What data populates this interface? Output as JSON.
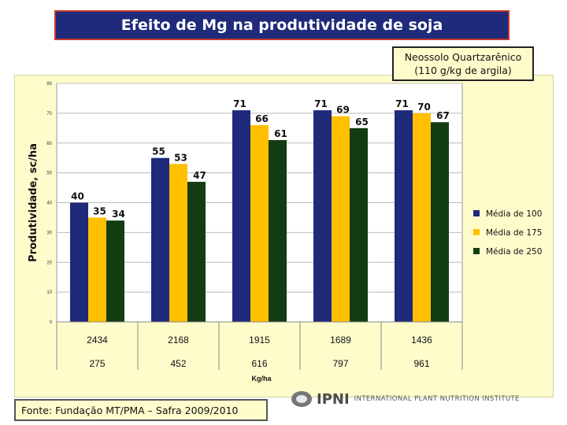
{
  "slide": {
    "title": "Efeito de Mg na produtividade de soja",
    "soil_line1": "Neossolo Quartzarênico",
    "soil_line2": "(110 g/kg de argila)",
    "source": "Fonte: Fundação MT/PMA – Safra 2009/2010",
    "logo_brand": "IPNI",
    "logo_sub": "INTERNATIONAL PLANT NUTRITION INSTITUTE"
  },
  "chart_data": {
    "type": "bar",
    "title": "Efeito de Mg na produtividade de soja",
    "ylabel": "Produtividade, sc/ha",
    "xlabel": "Kg/ha",
    "ylim": [
      0,
      80
    ],
    "yticks": [
      0,
      10,
      20,
      30,
      40,
      50,
      60,
      70,
      80
    ],
    "categories": [
      "2434",
      "2168",
      "1915",
      "1689",
      "1436"
    ],
    "categories_row2": [
      "275",
      "452",
      "616",
      "797",
      "961"
    ],
    "legend_position": "right",
    "series": [
      {
        "name": "Média de 100",
        "color": "#1f2a7a",
        "values": [
          40,
          55,
          71,
          71,
          71
        ]
      },
      {
        "name": "Média de 175",
        "color": "#ffc000",
        "values": [
          35,
          53,
          66,
          69,
          70
        ]
      },
      {
        "name": "Média de 250",
        "color": "#123d12",
        "values": [
          34,
          47,
          61,
          65,
          67
        ]
      }
    ]
  }
}
